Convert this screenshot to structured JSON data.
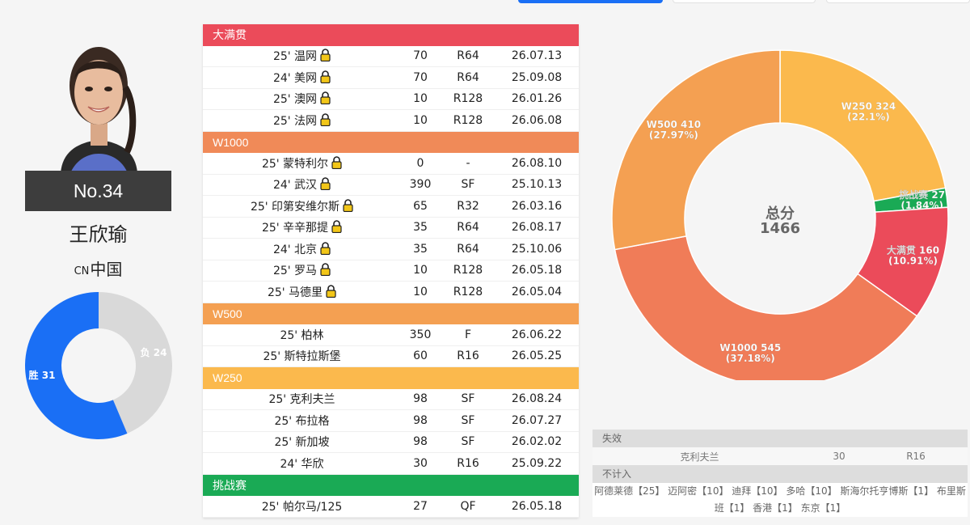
{
  "player": {
    "rank_label": "No.34",
    "name": "王欣瑜",
    "country_code": "CN",
    "country": "中国"
  },
  "win_loss": {
    "wins_label": "胜 31",
    "losses_label": "负 24",
    "wins": 31,
    "losses": 24,
    "win_color": "#1a6ff5",
    "loss_color": "#d9d9d9"
  },
  "categories": [
    {
      "name": "大满贯",
      "color": "#eb4b5a",
      "rows": [
        {
          "event": "25' 温网",
          "locked": true,
          "points": "70",
          "round": "R64",
          "date": "26.07.13"
        },
        {
          "event": "24' 美网",
          "locked": true,
          "points": "70",
          "round": "R64",
          "date": "25.09.08"
        },
        {
          "event": "25' 澳网",
          "locked": true,
          "points": "10",
          "round": "R128",
          "date": "26.01.26"
        },
        {
          "event": "25' 法网",
          "locked": true,
          "points": "10",
          "round": "R128",
          "date": "26.06.08"
        }
      ]
    },
    {
      "name": "W1000",
      "color": "#f08a58",
      "rows": [
        {
          "event": "25' 蒙特利尔",
          "locked": true,
          "points": "0",
          "round": "-",
          "date": "26.08.10"
        },
        {
          "event": "24' 武汉",
          "locked": true,
          "points": "390",
          "round": "SF",
          "date": "25.10.13"
        },
        {
          "event": "25' 印第安维尔斯",
          "locked": true,
          "points": "65",
          "round": "R32",
          "date": "26.03.16"
        },
        {
          "event": "25' 辛辛那提",
          "locked": true,
          "points": "35",
          "round": "R64",
          "date": "26.08.17"
        },
        {
          "event": "24' 北京",
          "locked": true,
          "points": "35",
          "round": "R64",
          "date": "25.10.06"
        },
        {
          "event": "25' 罗马",
          "locked": true,
          "points": "10",
          "round": "R128",
          "date": "26.05.18"
        },
        {
          "event": "25' 马德里",
          "locked": true,
          "points": "10",
          "round": "R128",
          "date": "26.05.04"
        }
      ]
    },
    {
      "name": "W500",
      "color": "#f4a052",
      "rows": [
        {
          "event": "25' 柏林",
          "locked": false,
          "points": "350",
          "round": "F",
          "date": "26.06.22"
        },
        {
          "event": "25' 斯特拉斯堡",
          "locked": false,
          "points": "60",
          "round": "R16",
          "date": "26.05.25"
        }
      ]
    },
    {
      "name": "W250",
      "color": "#fbb94d",
      "rows": [
        {
          "event": "25' 克利夫兰",
          "locked": false,
          "points": "98",
          "round": "SF",
          "date": "26.08.24"
        },
        {
          "event": "25' 布拉格",
          "locked": false,
          "points": "98",
          "round": "SF",
          "date": "26.07.27"
        },
        {
          "event": "25' 新加坡",
          "locked": false,
          "points": "98",
          "round": "SF",
          "date": "26.02.02"
        },
        {
          "event": "24' 华欣",
          "locked": false,
          "points": "30",
          "round": "R16",
          "date": "25.09.22"
        }
      ]
    },
    {
      "name": "挑战赛",
      "color": "#1aaa55",
      "rows": [
        {
          "event": "25' 帕尔马/125",
          "locked": false,
          "points": "27",
          "round": "QF",
          "date": "26.05.18"
        }
      ]
    }
  ],
  "points_chart": {
    "center_label": "总分",
    "total": "1466",
    "slices": [
      {
        "name": "W250",
        "value": 324,
        "label": "W250 324",
        "pct": "(22.1%)",
        "color": "#fbb94d"
      },
      {
        "name": "挑战赛",
        "value": 27,
        "label": "挑战赛 27",
        "pct": "(1.84%)",
        "color": "#1aaa55"
      },
      {
        "name": "大满贯",
        "value": 160,
        "label": "大满贯 160",
        "pct": "(10.91%)",
        "color": "#eb4b5a"
      },
      {
        "name": "W1000",
        "value": 545,
        "label": "W1000 545",
        "pct": "(37.18%)",
        "color": "#f07c58"
      },
      {
        "name": "W500",
        "value": 410,
        "label": "W500 410",
        "pct": "(27.97%)",
        "color": "#f4a052"
      }
    ]
  },
  "dropped": {
    "title": "失效",
    "rows": [
      {
        "event": "克利夫兰",
        "points": "30",
        "round": "R16"
      }
    ]
  },
  "not_counted": {
    "title": "不计入",
    "text": "阿德莱德【25】 迈阿密【10】 迪拜【10】 多哈【10】 斯海尔托亨博斯【1】 布里斯班【1】 香港【1】 东京【1】"
  }
}
